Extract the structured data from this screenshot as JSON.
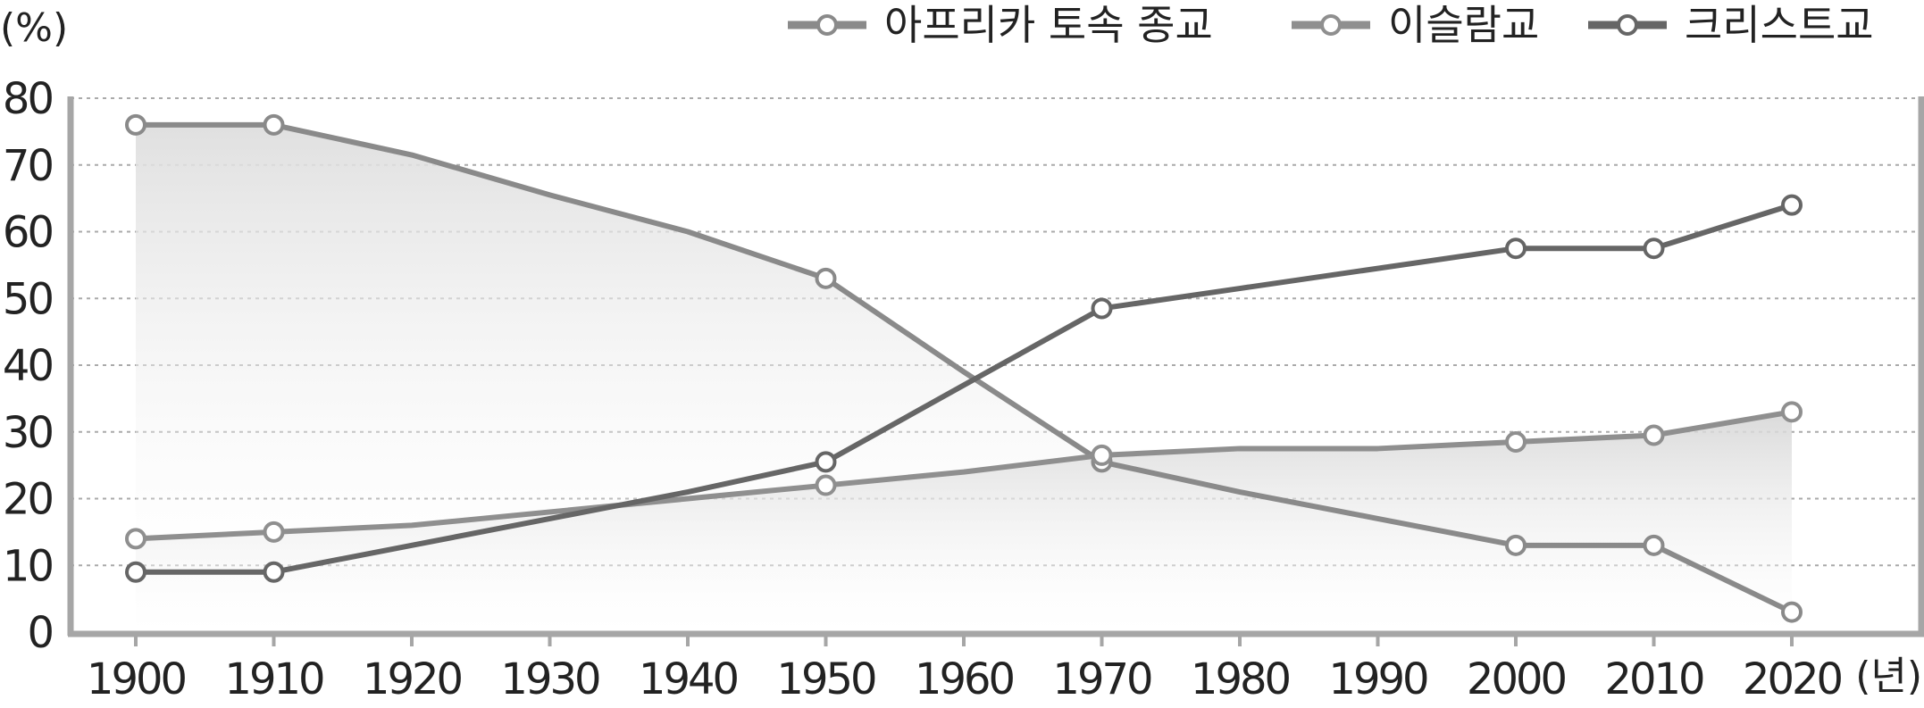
{
  "chart_data": {
    "type": "line",
    "title": "",
    "ylabel": "(%)",
    "xlabel": "(년)",
    "ylim": [
      0,
      80
    ],
    "yticks": [
      0,
      10,
      20,
      30,
      40,
      50,
      60,
      70,
      80
    ],
    "x": [
      1900,
      1910,
      1920,
      1930,
      1940,
      1950,
      1960,
      1970,
      1980,
      1990,
      2000,
      2010,
      2020
    ],
    "grid": "horizontal dotted",
    "legend": "top-right",
    "series": [
      {
        "name": "아프리카 토속 종교",
        "color": "#8a8a8a",
        "values": [
          76,
          76,
          71.5,
          65.5,
          60,
          53,
          39,
          25.5,
          21,
          17,
          13,
          13,
          3
        ],
        "markers": [
          1900,
          1910,
          1950,
          1970,
          2000,
          2010,
          2020
        ]
      },
      {
        "name": "이슬람교",
        "color": "#8f8f8f",
        "values": [
          14,
          15,
          16,
          18,
          20,
          22,
          24,
          26.5,
          27.5,
          27.5,
          28.5,
          29.5,
          33
        ],
        "markers": [
          1900,
          1910,
          1950,
          1970,
          2000,
          2010,
          2020
        ]
      },
      {
        "name": "크리스트교",
        "color": "#666666",
        "values": [
          9,
          9,
          13,
          17,
          21,
          25.5,
          37,
          48.5,
          51.5,
          54.5,
          57.5,
          57.5,
          64
        ],
        "markers": [
          1900,
          1910,
          1950,
          1970,
          2000,
          2010,
          2020
        ]
      }
    ]
  }
}
